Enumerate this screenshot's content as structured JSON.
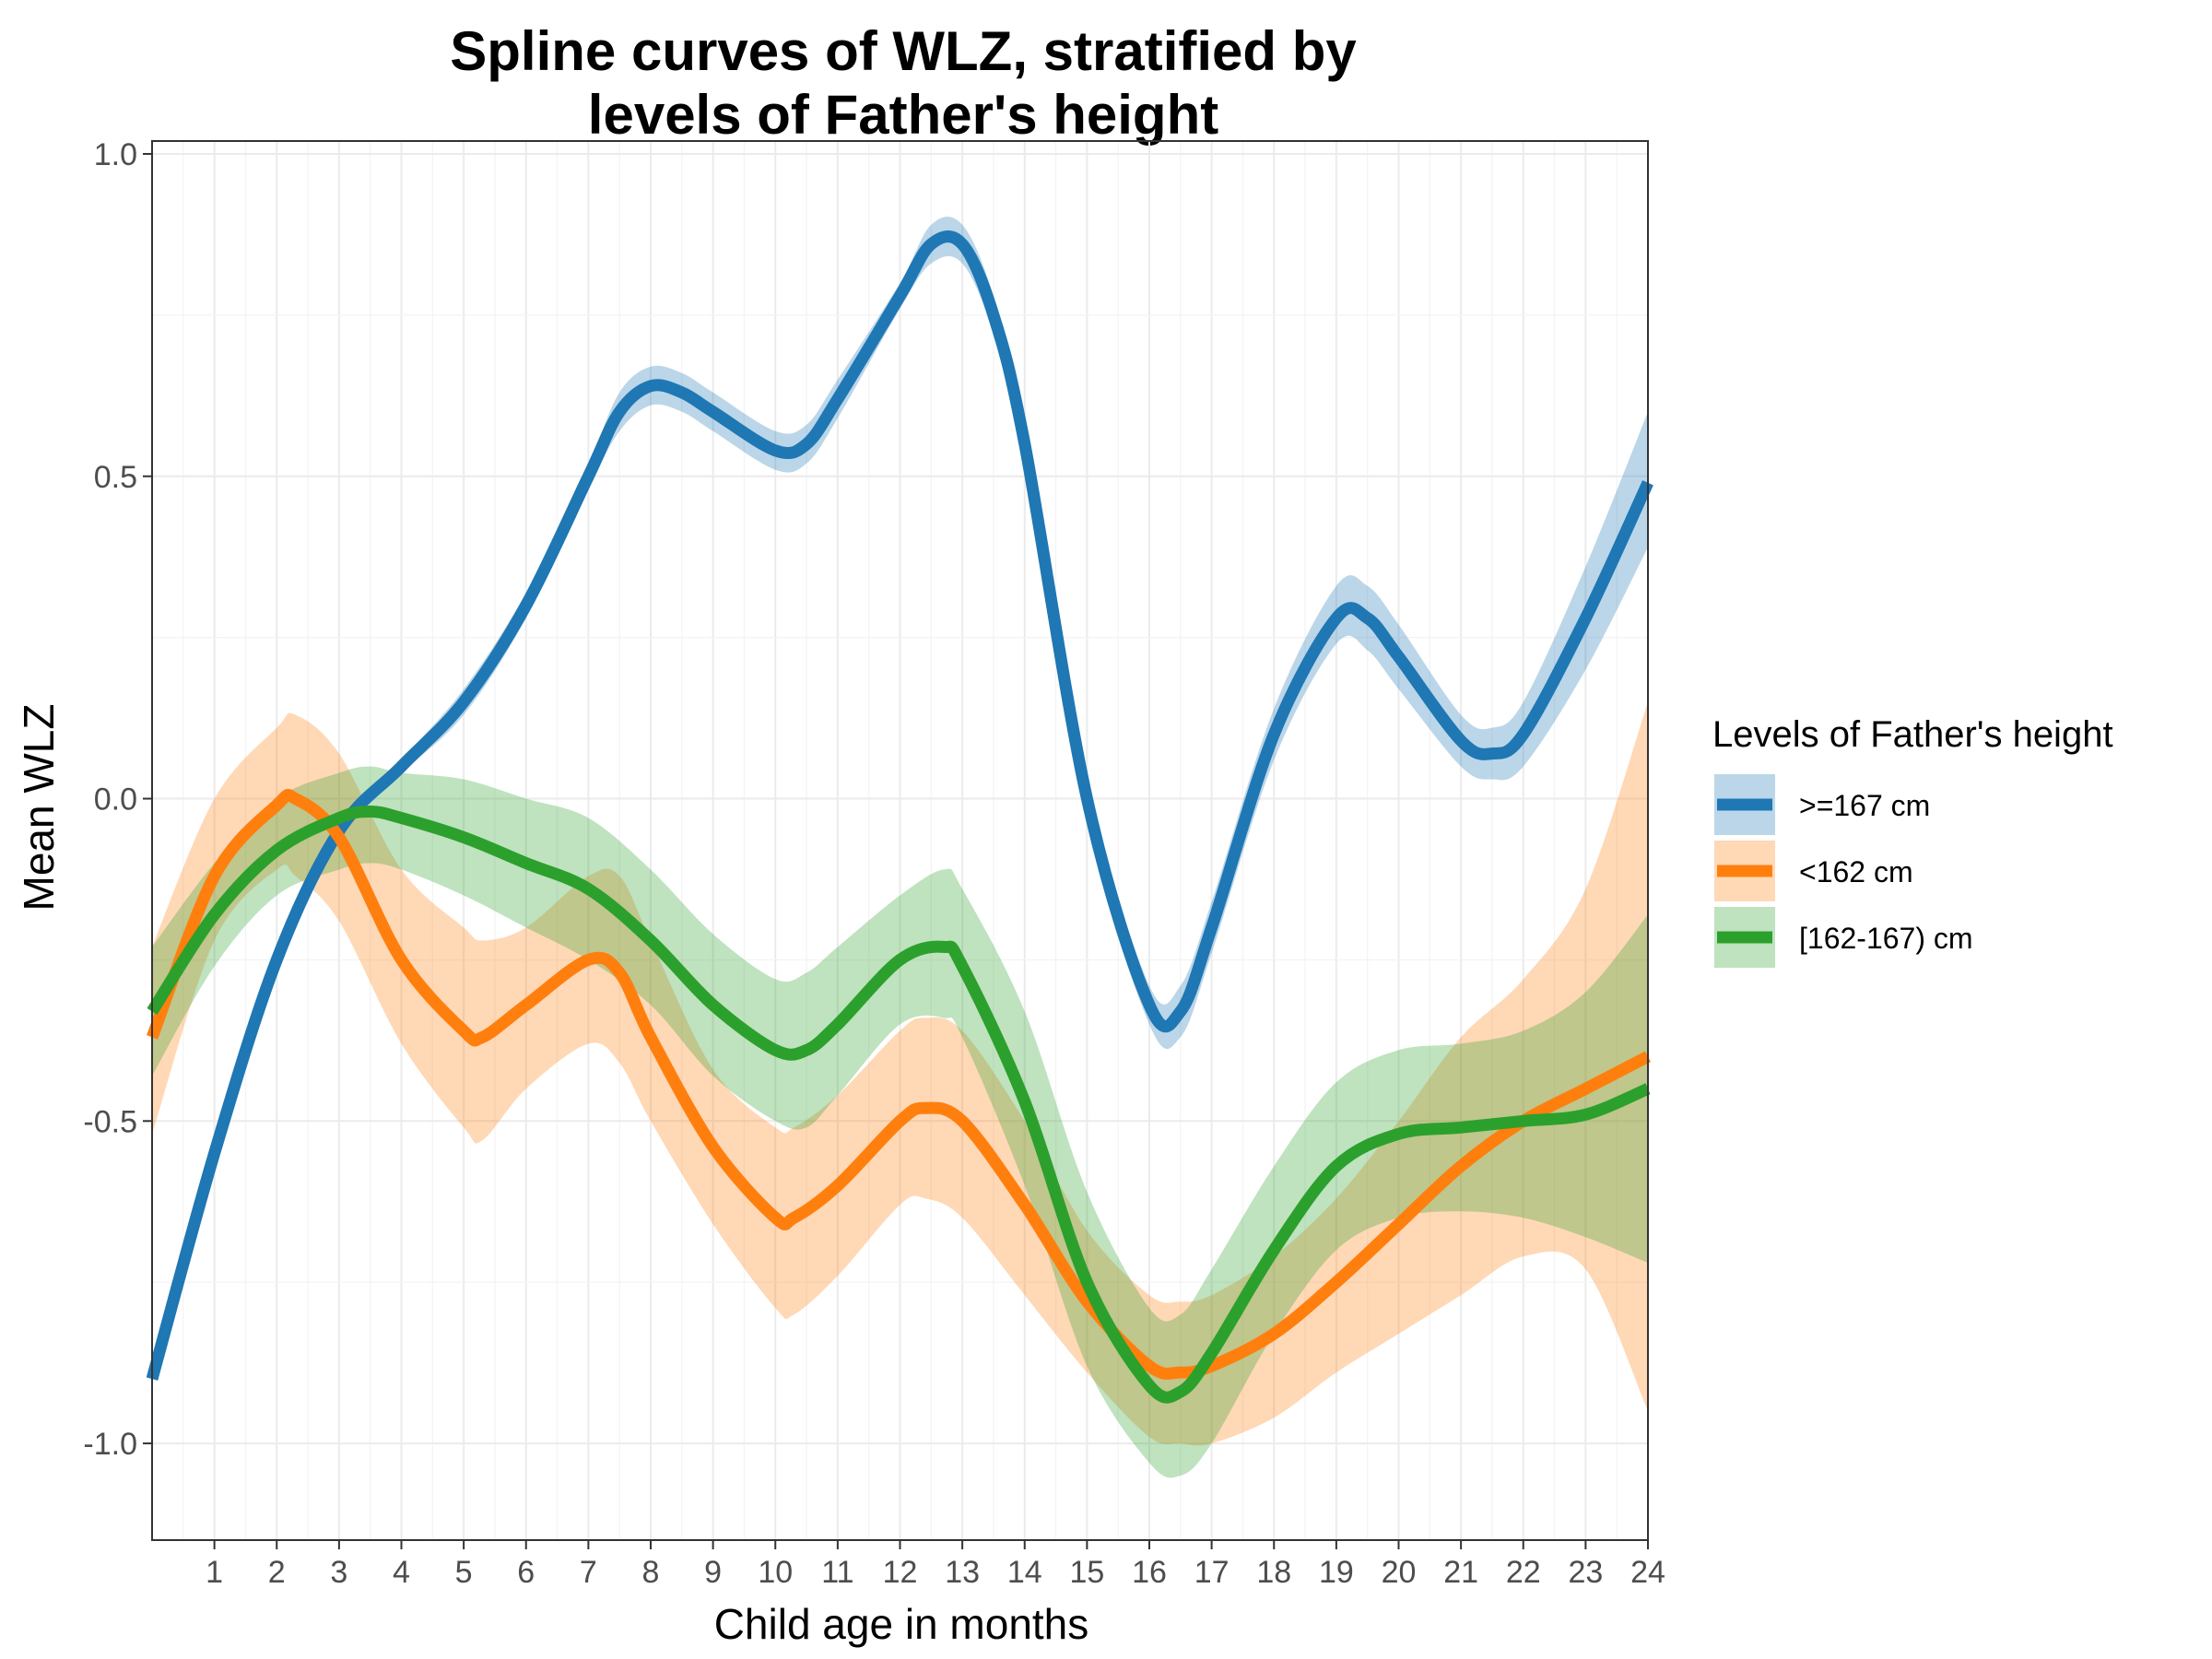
{
  "chart_data": {
    "type": "line",
    "title_line1": "Spline curves of WLZ, stratified by",
    "title_line2": "levels of Father's height",
    "xlabel": "Child age in months",
    "ylabel": "Mean WLZ",
    "xlim": [
      0,
      24
    ],
    "ylim": [
      -1.15,
      1.02
    ],
    "x_ticks": [
      "1",
      "2",
      "3",
      "4",
      "5",
      "6",
      "7",
      "8",
      "9",
      "10",
      "11",
      "12",
      "13",
      "14",
      "15",
      "16",
      "17",
      "18",
      "19",
      "20",
      "21",
      "22",
      "23",
      "24"
    ],
    "y_ticks": [
      "1.0",
      "0.5",
      "0.0",
      "-0.5",
      "-1.0"
    ],
    "y_tick_values": [
      1.0,
      0.5,
      0.0,
      -0.5,
      -1.0
    ],
    "grid": true,
    "legend_title": "Levels of Father's height",
    "legend_position": "right",
    "series": [
      {
        "name": ">=167 cm",
        "color": "#1f77b4",
        "x": [
          0,
          1,
          2,
          3,
          4,
          5,
          6,
          7,
          7.5,
          8,
          8.5,
          9,
          10,
          10.5,
          11,
          12,
          12.5,
          13,
          13.5,
          14,
          15,
          16,
          16.5,
          17,
          18,
          19,
          19.5,
          20,
          21,
          21.5,
          22,
          23,
          24
        ],
        "y": [
          -0.9,
          -0.55,
          -0.25,
          -0.05,
          0.05,
          0.15,
          0.3,
          0.5,
          0.6,
          0.64,
          0.63,
          0.6,
          0.54,
          0.55,
          0.62,
          0.78,
          0.86,
          0.86,
          0.75,
          0.55,
          0.0,
          -0.32,
          -0.33,
          -0.2,
          0.1,
          0.28,
          0.28,
          0.22,
          0.09,
          0.07,
          0.1,
          0.28,
          0.49
        ],
        "lower": [
          -0.9,
          -0.55,
          -0.25,
          -0.05,
          0.04,
          0.13,
          0.28,
          0.48,
          0.57,
          0.61,
          0.6,
          0.57,
          0.51,
          0.52,
          0.59,
          0.76,
          0.83,
          0.83,
          0.72,
          0.52,
          -0.03,
          -0.35,
          -0.37,
          -0.24,
          0.06,
          0.24,
          0.23,
          0.17,
          0.05,
          0.03,
          0.05,
          0.2,
          0.39
        ],
        "upper": [
          -0.9,
          -0.55,
          -0.25,
          -0.05,
          0.06,
          0.17,
          0.32,
          0.52,
          0.63,
          0.67,
          0.66,
          0.63,
          0.57,
          0.58,
          0.65,
          0.8,
          0.89,
          0.89,
          0.78,
          0.58,
          0.03,
          -0.29,
          -0.29,
          -0.16,
          0.14,
          0.33,
          0.33,
          0.27,
          0.13,
          0.11,
          0.15,
          0.36,
          0.6
        ]
      },
      {
        "name": "<162 cm",
        "color": "#ff7f0e",
        "x": [
          0,
          1,
          2,
          2.3,
          3,
          4,
          5,
          5.3,
          6,
          7,
          7.5,
          8,
          9,
          10,
          10.3,
          11,
          12,
          12.4,
          13,
          14,
          15,
          16,
          16.5,
          17,
          18,
          19,
          20,
          21,
          22,
          23,
          24
        ],
        "y": [
          -0.37,
          -0.12,
          -0.01,
          0.0,
          -0.06,
          -0.25,
          -0.36,
          -0.37,
          -0.32,
          -0.25,
          -0.27,
          -0.37,
          -0.54,
          -0.65,
          -0.65,
          -0.6,
          -0.5,
          -0.48,
          -0.5,
          -0.63,
          -0.78,
          -0.88,
          -0.89,
          -0.88,
          -0.83,
          -0.75,
          -0.66,
          -0.57,
          -0.5,
          -0.45,
          -0.4
        ],
        "lower": [
          -0.52,
          -0.22,
          -0.11,
          -0.12,
          -0.19,
          -0.38,
          -0.51,
          -0.53,
          -0.45,
          -0.38,
          -0.41,
          -0.5,
          -0.66,
          -0.79,
          -0.8,
          -0.74,
          -0.63,
          -0.62,
          -0.65,
          -0.77,
          -0.89,
          -0.99,
          -1.0,
          -1.0,
          -0.96,
          -0.89,
          -0.83,
          -0.77,
          -0.71,
          -0.73,
          -0.95
        ],
        "upper": [
          -0.23,
          0.0,
          0.11,
          0.13,
          0.07,
          -0.11,
          -0.2,
          -0.22,
          -0.2,
          -0.12,
          -0.12,
          -0.22,
          -0.42,
          -0.51,
          -0.51,
          -0.46,
          -0.36,
          -0.34,
          -0.36,
          -0.5,
          -0.67,
          -0.77,
          -0.78,
          -0.77,
          -0.71,
          -0.62,
          -0.5,
          -0.37,
          -0.28,
          -0.14,
          0.15
        ]
      },
      {
        "name": "[162-167) cm",
        "color": "#2ca02c",
        "x": [
          0,
          1,
          2,
          3,
          3.5,
          4,
          5,
          6,
          7,
          8,
          9,
          10,
          10.5,
          11,
          12,
          12.7,
          13,
          14,
          15,
          16,
          16.5,
          17,
          18,
          19,
          20,
          21,
          22,
          23,
          24
        ],
        "y": [
          -0.33,
          -0.18,
          -0.08,
          -0.03,
          -0.02,
          -0.03,
          -0.06,
          -0.1,
          -0.14,
          -0.22,
          -0.32,
          -0.39,
          -0.39,
          -0.35,
          -0.25,
          -0.23,
          -0.26,
          -0.47,
          -0.75,
          -0.91,
          -0.92,
          -0.86,
          -0.7,
          -0.57,
          -0.52,
          -0.51,
          -0.5,
          -0.49,
          -0.45
        ],
        "lower": [
          -0.43,
          -0.26,
          -0.15,
          -0.11,
          -0.1,
          -0.11,
          -0.15,
          -0.2,
          -0.25,
          -0.32,
          -0.43,
          -0.5,
          -0.51,
          -0.46,
          -0.35,
          -0.34,
          -0.37,
          -0.6,
          -0.88,
          -1.03,
          -1.05,
          -1.0,
          -0.83,
          -0.7,
          -0.65,
          -0.64,
          -0.65,
          -0.68,
          -0.72
        ],
        "upper": [
          -0.23,
          -0.1,
          0.0,
          0.04,
          0.05,
          0.04,
          0.03,
          0.0,
          -0.03,
          -0.11,
          -0.21,
          -0.28,
          -0.27,
          -0.23,
          -0.15,
          -0.11,
          -0.14,
          -0.33,
          -0.61,
          -0.79,
          -0.8,
          -0.73,
          -0.57,
          -0.44,
          -0.39,
          -0.38,
          -0.36,
          -0.3,
          -0.18
        ]
      }
    ]
  }
}
